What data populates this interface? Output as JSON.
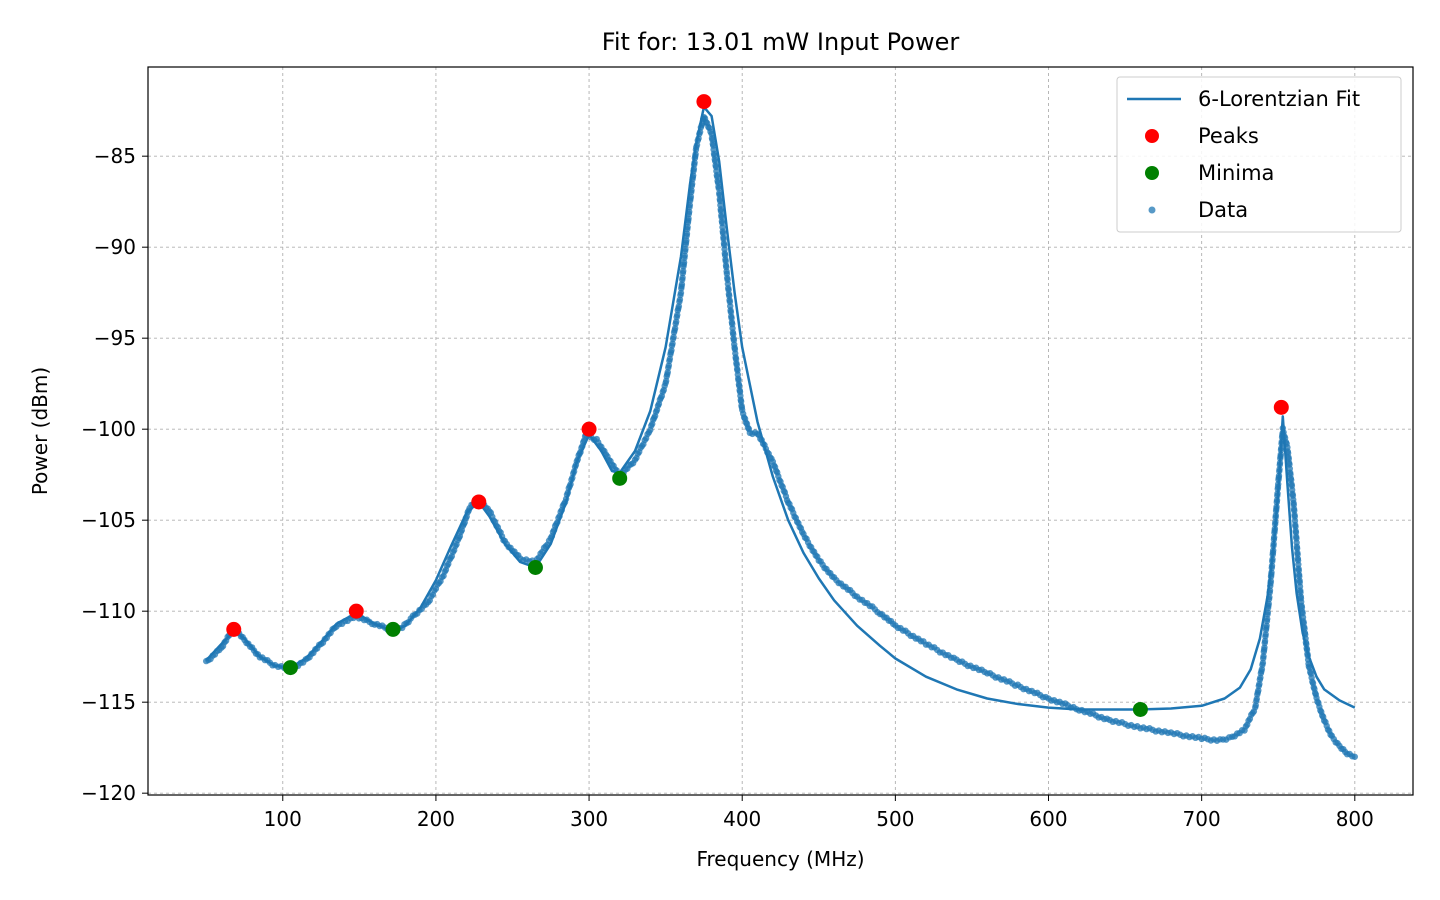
{
  "chart_data": {
    "type": "line",
    "title": "Fit for: 13.01 mW Input Power",
    "xlabel": "Frequency (MHz)",
    "ylabel": "Power (dBm)",
    "xlim": [
      12,
      838
    ],
    "ylim": [
      -120.1,
      -80.1
    ],
    "xticks": [
      100,
      200,
      300,
      400,
      500,
      600,
      700,
      800
    ],
    "yticks": [
      -85,
      -90,
      -95,
      -100,
      -105,
      -110,
      -115,
      -120
    ],
    "ytick_labels": [
      "−85",
      "−90",
      "−95",
      "−100",
      "−105",
      "−110",
      "−115",
      "−120"
    ],
    "xtick_labels": [
      "100",
      "200",
      "300",
      "400",
      "500",
      "600",
      "700",
      "800"
    ],
    "grid": true,
    "legend_position": "top-right",
    "colors": {
      "fit": "#1f77b4",
      "data": "#1f77b4",
      "peaks": "#ff0000",
      "minima": "#008000",
      "grid": "#b0b0b0"
    },
    "series": [
      {
        "name": "6-Lorentzian Fit",
        "kind": "line",
        "x": [
          50,
          60,
          68,
          75,
          85,
          95,
          105,
          115,
          125,
          135,
          148,
          160,
          172,
          180,
          190,
          200,
          210,
          220,
          228,
          235,
          245,
          255,
          265,
          275,
          285,
          292,
          300,
          308,
          315,
          320,
          330,
          340,
          350,
          360,
          366,
          370,
          375,
          380,
          385,
          390,
          395,
          400,
          410,
          420,
          430,
          440,
          450,
          460,
          475,
          490,
          500,
          520,
          540,
          560,
          580,
          600,
          620,
          640,
          660,
          680,
          700,
          715,
          725,
          732,
          738,
          743,
          747,
          750,
          753,
          756,
          759,
          762,
          766,
          770,
          775,
          780,
          790,
          800
        ],
        "y": [
          -112.7,
          -111.8,
          -111.1,
          -111.5,
          -112.5,
          -113.0,
          -113.1,
          -112.6,
          -111.7,
          -110.7,
          -110.1,
          -110.7,
          -111.1,
          -110.8,
          -109.8,
          -108.3,
          -106.4,
          -104.6,
          -104.0,
          -104.8,
          -106.3,
          -107.3,
          -107.6,
          -106.3,
          -104.0,
          -101.8,
          -100.3,
          -101.2,
          -102.3,
          -102.4,
          -101.2,
          -99.0,
          -95.5,
          -90.5,
          -86.5,
          -84.3,
          -82.3,
          -82.8,
          -85.3,
          -89.0,
          -92.5,
          -95.5,
          -99.6,
          -102.6,
          -105.0,
          -106.8,
          -108.2,
          -109.4,
          -110.8,
          -111.9,
          -112.6,
          -113.6,
          -114.3,
          -114.8,
          -115.1,
          -115.3,
          -115.4,
          -115.4,
          -115.4,
          -115.35,
          -115.2,
          -114.8,
          -114.2,
          -113.2,
          -111.5,
          -109.2,
          -106.5,
          -103.5,
          -99.3,
          -103.0,
          -106.5,
          -109.0,
          -111.2,
          -112.5,
          -113.6,
          -114.3,
          -114.9,
          -115.3
        ]
      },
      {
        "name": "Peaks",
        "kind": "marker",
        "x": [
          68,
          148,
          228,
          300,
          375,
          752
        ],
        "y": [
          -111.0,
          -110.0,
          -104.0,
          -100.0,
          -82.0,
          -98.8
        ]
      },
      {
        "name": "Minima",
        "kind": "marker",
        "x": [
          105,
          172,
          265,
          320,
          660
        ],
        "y": [
          -113.1,
          -111.0,
          -107.6,
          -102.7,
          -115.4
        ]
      },
      {
        "name": "Data",
        "kind": "scatter",
        "x": [
          50,
          60,
          68,
          75,
          85,
          95,
          105,
          115,
          125,
          135,
          148,
          160,
          170,
          178,
          185,
          195,
          205,
          215,
          222,
          228,
          235,
          245,
          255,
          265,
          275,
          285,
          292,
          298,
          305,
          312,
          320,
          330,
          340,
          350,
          360,
          366,
          370,
          375,
          380,
          385,
          390,
          395,
          400,
          405,
          410,
          420,
          430,
          440,
          450,
          460,
          475,
          490,
          500,
          520,
          540,
          560,
          580,
          600,
          620,
          640,
          660,
          680,
          700,
          712,
          720,
          728,
          735,
          740,
          745,
          750,
          753,
          756,
          760,
          765,
          770,
          775,
          780,
          785,
          790,
          795,
          800
        ],
        "y": [
          -112.8,
          -112.0,
          -110.9,
          -111.6,
          -112.5,
          -113.0,
          -113.2,
          -112.7,
          -111.8,
          -110.8,
          -110.3,
          -110.7,
          -111.0,
          -110.9,
          -110.3,
          -109.5,
          -108.0,
          -106.0,
          -104.3,
          -103.8,
          -104.5,
          -106.2,
          -107.1,
          -107.3,
          -106.0,
          -103.8,
          -101.8,
          -100.3,
          -100.6,
          -101.5,
          -102.6,
          -101.7,
          -100.0,
          -97.5,
          -92.5,
          -87.5,
          -84.5,
          -82.8,
          -83.8,
          -87.0,
          -91.5,
          -95.5,
          -99.0,
          -100.2,
          -100.2,
          -101.8,
          -104.0,
          -105.8,
          -107.2,
          -108.2,
          -109.2,
          -110.1,
          -110.8,
          -111.8,
          -112.7,
          -113.4,
          -114.1,
          -114.8,
          -115.4,
          -116.0,
          -116.4,
          -116.7,
          -117.0,
          -117.1,
          -116.9,
          -116.5,
          -115.3,
          -112.8,
          -108.5,
          -103.0,
          -100.0,
          -101.0,
          -104.0,
          -109.5,
          -113.0,
          -114.8,
          -116.0,
          -116.9,
          -117.4,
          -117.8,
          -118.0
        ]
      }
    ]
  }
}
